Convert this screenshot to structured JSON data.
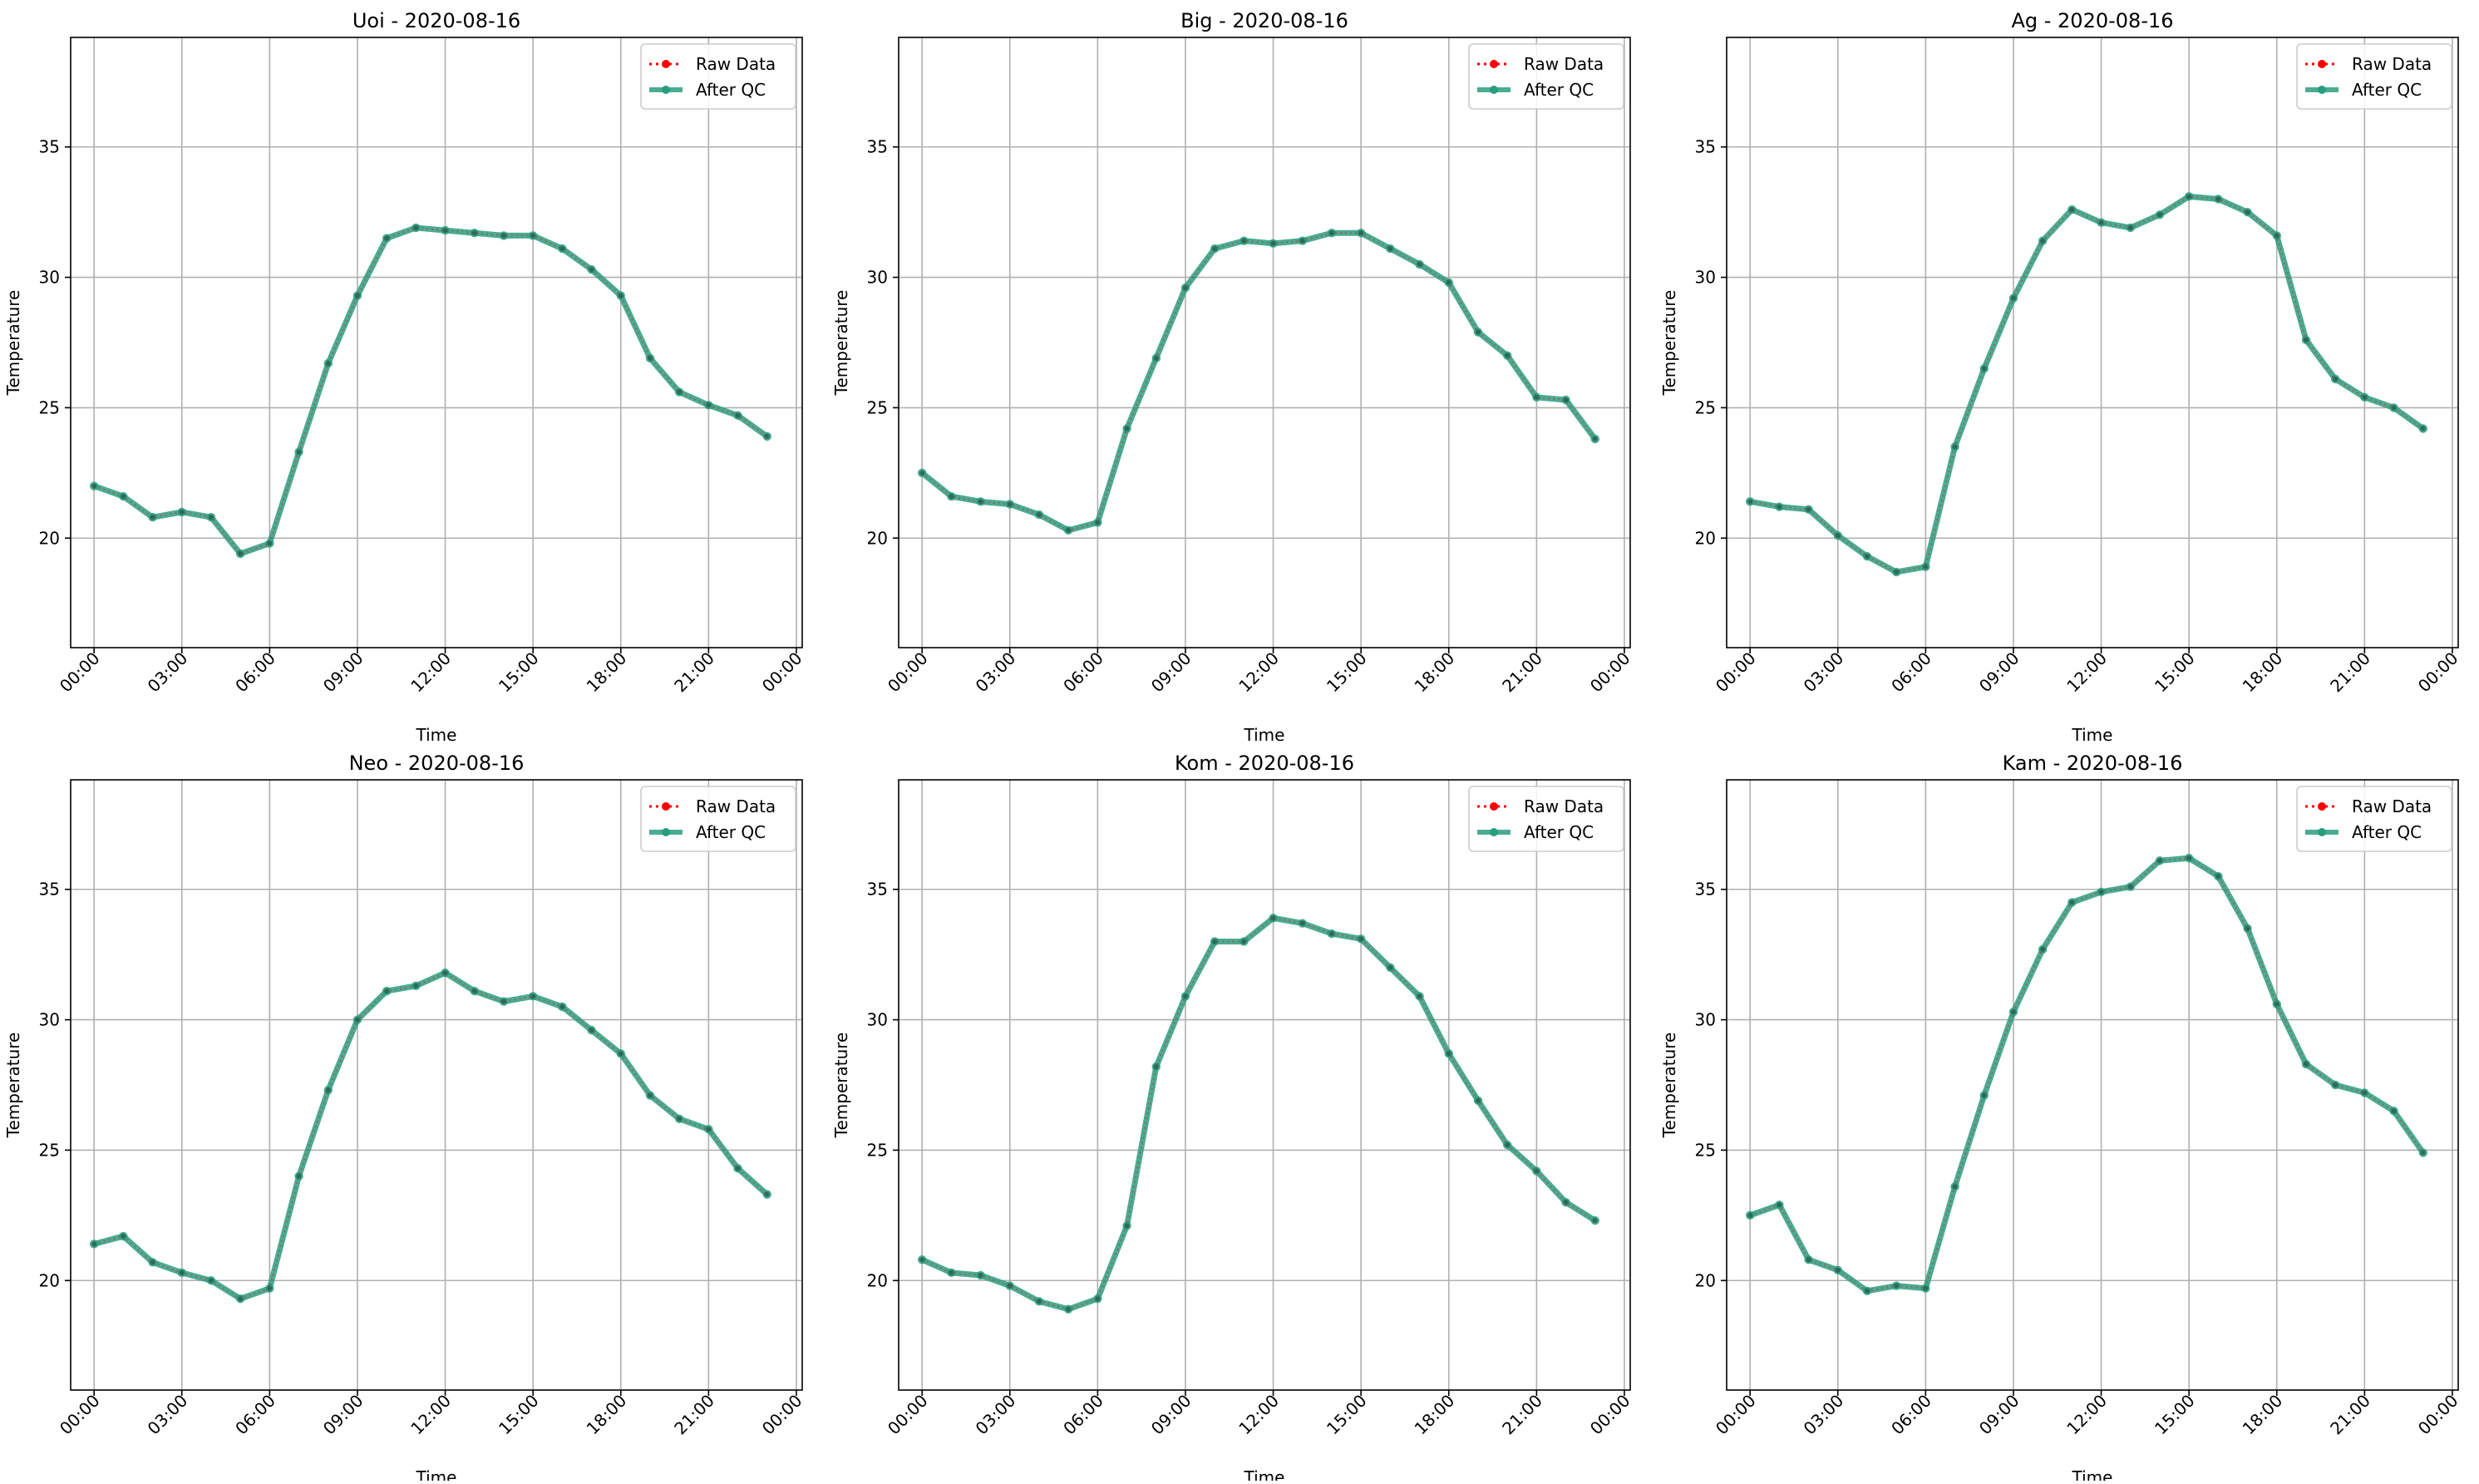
{
  "chart_data": [
    {
      "type": "line",
      "title": "Uoi - 2020-08-16",
      "xlabel": "Time",
      "ylabel": "Temperature",
      "x": [
        "00:00",
        "01:00",
        "02:00",
        "03:00",
        "04:00",
        "05:00",
        "06:00",
        "07:00",
        "08:00",
        "09:00",
        "10:00",
        "11:00",
        "12:00",
        "13:00",
        "14:00",
        "15:00",
        "16:00",
        "17:00",
        "18:00",
        "19:00",
        "20:00",
        "21:00",
        "22:00",
        "23:00"
      ],
      "xticks": [
        "00:00",
        "03:00",
        "06:00",
        "09:00",
        "12:00",
        "15:00",
        "18:00",
        "21:00",
        "00:00"
      ],
      "yticks": [
        20,
        25,
        30,
        35
      ],
      "ylim": [
        15.8,
        39.2
      ],
      "grid": true,
      "legend_position": "top-right",
      "series": [
        {
          "name": "Raw Data",
          "color": "#ff0000",
          "values": [
            22.0,
            21.6,
            20.8,
            21.0,
            20.8,
            19.4,
            19.8,
            23.3,
            26.7,
            29.3,
            31.5,
            31.9,
            31.8,
            31.7,
            31.6,
            31.6,
            31.1,
            30.3,
            29.3,
            26.9,
            25.6,
            25.1,
            24.7,
            23.9
          ]
        },
        {
          "name": "After QC",
          "color": "#2a9d7f",
          "values": [
            22.0,
            21.6,
            20.8,
            21.0,
            20.8,
            19.4,
            19.8,
            23.3,
            26.7,
            29.3,
            31.5,
            31.9,
            31.8,
            31.7,
            31.6,
            31.6,
            31.1,
            30.3,
            29.3,
            26.9,
            25.6,
            25.1,
            24.7,
            23.9
          ]
        }
      ]
    },
    {
      "type": "line",
      "title": "Big - 2020-08-16",
      "xlabel": "Time",
      "ylabel": "Temperature",
      "x": [
        "00:00",
        "01:00",
        "02:00",
        "03:00",
        "04:00",
        "05:00",
        "06:00",
        "07:00",
        "08:00",
        "09:00",
        "10:00",
        "11:00",
        "12:00",
        "13:00",
        "14:00",
        "15:00",
        "16:00",
        "17:00",
        "18:00",
        "19:00",
        "20:00",
        "21:00",
        "22:00",
        "23:00"
      ],
      "xticks": [
        "00:00",
        "03:00",
        "06:00",
        "09:00",
        "12:00",
        "15:00",
        "18:00",
        "21:00",
        "00:00"
      ],
      "yticks": [
        20,
        25,
        30,
        35
      ],
      "ylim": [
        15.8,
        39.2
      ],
      "grid": true,
      "legend_position": "top-right",
      "series": [
        {
          "name": "Raw Data",
          "color": "#ff0000",
          "values": [
            22.5,
            21.6,
            21.4,
            21.3,
            20.9,
            20.3,
            20.6,
            24.2,
            26.9,
            29.6,
            31.1,
            31.4,
            31.3,
            31.4,
            31.7,
            31.7,
            31.1,
            30.5,
            29.8,
            27.9,
            27.0,
            25.4,
            25.3,
            23.8
          ]
        },
        {
          "name": "After QC",
          "color": "#2a9d7f",
          "values": [
            22.5,
            21.6,
            21.4,
            21.3,
            20.9,
            20.3,
            20.6,
            24.2,
            26.9,
            29.6,
            31.1,
            31.4,
            31.3,
            31.4,
            31.7,
            31.7,
            31.1,
            30.5,
            29.8,
            27.9,
            27.0,
            25.4,
            25.3,
            23.8
          ]
        }
      ]
    },
    {
      "type": "line",
      "title": "Ag - 2020-08-16",
      "xlabel": "Time",
      "ylabel": "Temperature",
      "x": [
        "00:00",
        "01:00",
        "02:00",
        "03:00",
        "04:00",
        "05:00",
        "06:00",
        "07:00",
        "08:00",
        "09:00",
        "10:00",
        "11:00",
        "12:00",
        "13:00",
        "14:00",
        "15:00",
        "16:00",
        "17:00",
        "18:00",
        "19:00",
        "20:00",
        "21:00",
        "22:00",
        "23:00"
      ],
      "xticks": [
        "00:00",
        "03:00",
        "06:00",
        "09:00",
        "12:00",
        "15:00",
        "18:00",
        "21:00",
        "00:00"
      ],
      "yticks": [
        20,
        25,
        30,
        35
      ],
      "ylim": [
        15.8,
        39.2
      ],
      "grid": true,
      "legend_position": "top-right",
      "series": [
        {
          "name": "Raw Data",
          "color": "#ff0000",
          "values": [
            21.4,
            21.2,
            21.1,
            20.1,
            19.3,
            18.7,
            18.9,
            23.5,
            26.5,
            29.2,
            31.4,
            32.6,
            32.1,
            31.9,
            32.4,
            33.1,
            33.0,
            32.5,
            31.6,
            27.6,
            26.1,
            25.4,
            25.0,
            24.2
          ]
        },
        {
          "name": "After QC",
          "color": "#2a9d7f",
          "values": [
            21.4,
            21.2,
            21.1,
            20.1,
            19.3,
            18.7,
            18.9,
            23.5,
            26.5,
            29.2,
            31.4,
            32.6,
            32.1,
            31.9,
            32.4,
            33.1,
            33.0,
            32.5,
            31.6,
            27.6,
            26.1,
            25.4,
            25.0,
            24.2
          ]
        }
      ]
    },
    {
      "type": "line",
      "title": "Neo - 2020-08-16",
      "xlabel": "Time",
      "ylabel": "Temperature",
      "x": [
        "00:00",
        "01:00",
        "02:00",
        "03:00",
        "04:00",
        "05:00",
        "06:00",
        "07:00",
        "08:00",
        "09:00",
        "10:00",
        "11:00",
        "12:00",
        "13:00",
        "14:00",
        "15:00",
        "16:00",
        "17:00",
        "18:00",
        "19:00",
        "20:00",
        "21:00",
        "22:00",
        "23:00"
      ],
      "xticks": [
        "00:00",
        "03:00",
        "06:00",
        "09:00",
        "12:00",
        "15:00",
        "18:00",
        "21:00",
        "00:00"
      ],
      "yticks": [
        20,
        25,
        30,
        35
      ],
      "ylim": [
        15.8,
        39.2
      ],
      "grid": true,
      "legend_position": "top-right",
      "series": [
        {
          "name": "Raw Data",
          "color": "#ff0000",
          "values": [
            21.4,
            21.7,
            20.7,
            20.3,
            20.0,
            19.3,
            19.7,
            24.0,
            27.3,
            30.0,
            31.1,
            31.3,
            31.8,
            31.1,
            30.7,
            30.9,
            30.5,
            29.6,
            28.7,
            27.1,
            26.2,
            25.8,
            24.3,
            23.3
          ]
        },
        {
          "name": "After QC",
          "color": "#2a9d7f",
          "values": [
            21.4,
            21.7,
            20.7,
            20.3,
            20.0,
            19.3,
            19.7,
            24.0,
            27.3,
            30.0,
            31.1,
            31.3,
            31.8,
            31.1,
            30.7,
            30.9,
            30.5,
            29.6,
            28.7,
            27.1,
            26.2,
            25.8,
            24.3,
            23.3
          ]
        }
      ]
    },
    {
      "type": "line",
      "title": "Kom - 2020-08-16",
      "xlabel": "Time",
      "ylabel": "Temperature",
      "x": [
        "00:00",
        "01:00",
        "02:00",
        "03:00",
        "04:00",
        "05:00",
        "06:00",
        "07:00",
        "08:00",
        "09:00",
        "10:00",
        "11:00",
        "12:00",
        "13:00",
        "14:00",
        "15:00",
        "16:00",
        "17:00",
        "18:00",
        "19:00",
        "20:00",
        "21:00",
        "22:00",
        "23:00"
      ],
      "xticks": [
        "00:00",
        "03:00",
        "06:00",
        "09:00",
        "12:00",
        "15:00",
        "18:00",
        "21:00",
        "00:00"
      ],
      "yticks": [
        20,
        25,
        30,
        35
      ],
      "ylim": [
        15.8,
        39.2
      ],
      "grid": true,
      "legend_position": "top-right",
      "series": [
        {
          "name": "Raw Data",
          "color": "#ff0000",
          "values": [
            20.8,
            20.3,
            20.2,
            19.8,
            19.2,
            18.9,
            19.3,
            22.1,
            28.2,
            30.9,
            33.0,
            33.0,
            33.9,
            33.7,
            33.3,
            33.1,
            32.0,
            30.9,
            28.7,
            26.9,
            25.2,
            24.2,
            23.0,
            22.3
          ]
        },
        {
          "name": "After QC",
          "color": "#2a9d7f",
          "values": [
            20.8,
            20.3,
            20.2,
            19.8,
            19.2,
            18.9,
            19.3,
            22.1,
            28.2,
            30.9,
            33.0,
            33.0,
            33.9,
            33.7,
            33.3,
            33.1,
            32.0,
            30.9,
            28.7,
            26.9,
            25.2,
            24.2,
            23.0,
            22.3
          ]
        }
      ]
    },
    {
      "type": "line",
      "title": "Kam - 2020-08-16",
      "xlabel": "Time",
      "ylabel": "Temperature",
      "x": [
        "00:00",
        "01:00",
        "02:00",
        "03:00",
        "04:00",
        "05:00",
        "06:00",
        "07:00",
        "08:00",
        "09:00",
        "10:00",
        "11:00",
        "12:00",
        "13:00",
        "14:00",
        "15:00",
        "16:00",
        "17:00",
        "18:00",
        "19:00",
        "20:00",
        "21:00",
        "22:00",
        "23:00"
      ],
      "xticks": [
        "00:00",
        "03:00",
        "06:00",
        "09:00",
        "12:00",
        "15:00",
        "18:00",
        "21:00",
        "00:00"
      ],
      "yticks": [
        20,
        25,
        30,
        35
      ],
      "ylim": [
        15.8,
        39.2
      ],
      "grid": true,
      "legend_position": "top-right",
      "series": [
        {
          "name": "Raw Data",
          "color": "#ff0000",
          "values": [
            22.5,
            22.9,
            20.8,
            20.4,
            19.6,
            19.8,
            19.7,
            23.6,
            27.1,
            30.3,
            32.7,
            34.5,
            34.9,
            35.1,
            36.1,
            36.2,
            35.5,
            33.5,
            30.6,
            28.3,
            27.5,
            27.2,
            26.5,
            24.9
          ]
        },
        {
          "name": "After QC",
          "color": "#2a9d7f",
          "values": [
            22.5,
            22.9,
            20.8,
            20.4,
            19.6,
            19.8,
            19.7,
            23.6,
            27.1,
            30.3,
            32.7,
            34.5,
            34.9,
            35.1,
            36.1,
            36.2,
            35.5,
            33.5,
            30.6,
            28.3,
            27.5,
            27.2,
            26.5,
            24.9
          ]
        }
      ]
    }
  ]
}
